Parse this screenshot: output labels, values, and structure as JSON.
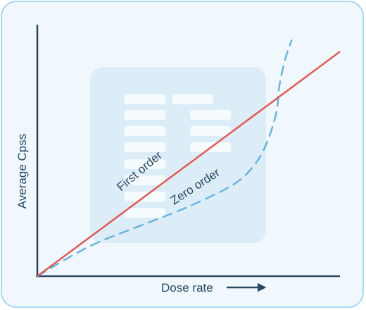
{
  "chart_data": {
    "type": "line",
    "xlabel": "Dose rate",
    "ylabel": "Average Cpss",
    "series": [
      {
        "name": "First order",
        "color": "#e05a55",
        "style": "solid",
        "points": [
          [
            0,
            0
          ],
          [
            100,
            100
          ]
        ]
      },
      {
        "name": "Zero order",
        "color": "#6ab4db",
        "style": "dashed",
        "points": [
          [
            0,
            0
          ],
          [
            10,
            8
          ],
          [
            20,
            15
          ],
          [
            35,
            23
          ],
          [
            50,
            31
          ],
          [
            65,
            41
          ],
          [
            72,
            50
          ],
          [
            76,
            60
          ],
          [
            79,
            73
          ],
          [
            80,
            85
          ],
          [
            82,
            97
          ],
          [
            84,
            105
          ]
        ]
      }
    ],
    "xlim": [
      0,
      100
    ],
    "ylim": [
      0,
      112
    ],
    "grid": false,
    "legend": "inline labels on lines"
  },
  "colors": {
    "card_background": "#f0f8fd",
    "card_border": "#a9d7ee",
    "axis": "#284862",
    "background_graphic": "#dcedf8",
    "background_graphic_rows": "#f6fbfe"
  }
}
